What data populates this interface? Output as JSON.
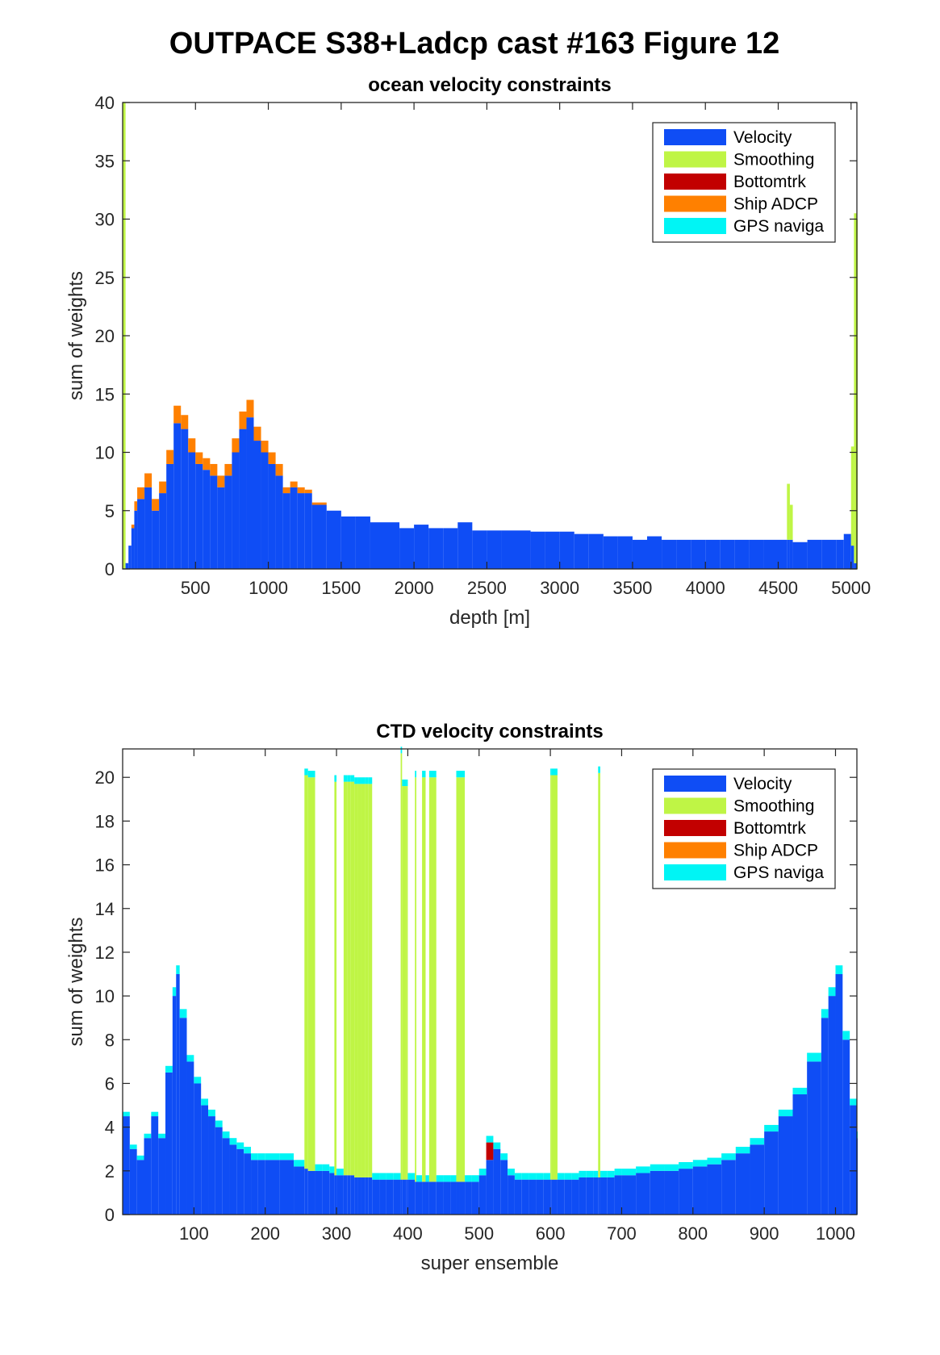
{
  "figure": {
    "suptitle": "OUTPACE S38+Ladcp cast #163  Figure 12"
  },
  "colors": {
    "Velocity": "#0f4df5",
    "Smoothing": "#bff545",
    "Bottomtrk": "#c20000",
    "Ship ADCP": "#ff8000",
    "GPS naviga": "#00f5f5"
  },
  "chart_data": [
    {
      "type": "bar",
      "stacked": true,
      "title": "ocean velocity constraints",
      "xlabel": "depth [m]",
      "ylabel": "sum of weights",
      "xlim": [
        0,
        5040
      ],
      "ylim": [
        0,
        40
      ],
      "xticks": [
        500,
        1000,
        1500,
        2000,
        2500,
        3000,
        3500,
        4000,
        4500,
        5000
      ],
      "yticks": [
        0,
        5,
        10,
        15,
        20,
        25,
        30,
        35,
        40
      ],
      "grid": false,
      "legend_position": "top-right",
      "legend": [
        "Velocity",
        "Smoothing",
        "Bottomtrk",
        "Ship ADCP",
        "GPS naviga"
      ],
      "x": [
        0,
        20,
        40,
        60,
        80,
        100,
        150,
        200,
        250,
        300,
        350,
        400,
        450,
        500,
        550,
        600,
        650,
        700,
        750,
        800,
        850,
        900,
        950,
        1000,
        1050,
        1100,
        1150,
        1200,
        1250,
        1300,
        1400,
        1500,
        1600,
        1700,
        1800,
        1900,
        2000,
        2100,
        2200,
        2300,
        2400,
        2500,
        2600,
        2700,
        2800,
        2900,
        3000,
        3100,
        3200,
        3300,
        3400,
        3500,
        3600,
        3700,
        3800,
        3900,
        4000,
        4100,
        4200,
        4300,
        4400,
        4500,
        4560,
        4580,
        4600,
        4700,
        4800,
        4900,
        4950,
        5000,
        5020,
        5040
      ],
      "series": [
        {
          "name": "Velocity",
          "values": [
            0,
            0.5,
            2,
            3.5,
            5,
            6,
            7,
            5,
            6.5,
            9,
            12.5,
            12,
            10,
            9,
            8.5,
            8,
            7,
            8,
            10,
            12,
            13,
            11,
            10,
            9,
            8,
            6.5,
            7,
            6.5,
            6.5,
            5.5,
            5,
            4.5,
            4.5,
            4,
            4,
            3.5,
            3.8,
            3.5,
            3.5,
            4,
            3.3,
            3.3,
            3.3,
            3.3,
            3.2,
            3.2,
            3.2,
            3,
            3,
            2.8,
            2.8,
            2.5,
            2.8,
            2.5,
            2.5,
            2.5,
            2.5,
            2.5,
            2.5,
            2.5,
            2.5,
            2.5,
            2.5,
            2.5,
            2.3,
            2.5,
            2.5,
            2.5,
            3,
            2,
            0.5,
            0
          ]
        },
        {
          "name": "Smoothing",
          "values": [
            40,
            0,
            0,
            0,
            0,
            0,
            0,
            0,
            0,
            0,
            0,
            0,
            0,
            0,
            0,
            0,
            0,
            0,
            0,
            0,
            0,
            0,
            0,
            0,
            0,
            0,
            0,
            0,
            0,
            0,
            0,
            0,
            0,
            0,
            0,
            0,
            0,
            0,
            0,
            0,
            0,
            0,
            0,
            0,
            0,
            0,
            0,
            0,
            0,
            0,
            0,
            0,
            0,
            0,
            0,
            0,
            0,
            0,
            0,
            0,
            0,
            0,
            4.8,
            3,
            0,
            0,
            0,
            0,
            0,
            8.5,
            30,
            30
          ]
        },
        {
          "name": "Bottomtrk",
          "values": [
            0,
            0,
            0,
            0,
            0,
            0,
            0,
            0,
            0,
            0,
            0,
            0,
            0,
            0,
            0,
            0,
            0,
            0,
            0,
            0,
            0,
            0,
            0,
            0,
            0,
            0,
            0,
            0,
            0,
            0,
            0,
            0,
            0,
            0,
            0,
            0,
            0,
            0,
            0,
            0,
            0,
            0,
            0,
            0,
            0,
            0,
            0,
            0,
            0,
            0,
            0,
            0,
            0,
            0,
            0,
            0,
            0,
            0,
            0,
            0,
            0,
            0,
            0,
            0,
            0,
            0,
            0,
            0,
            0,
            0,
            0,
            0
          ]
        },
        {
          "name": "Ship ADCP",
          "values": [
            0,
            0,
            0,
            0.3,
            0.8,
            1,
            1.2,
            1,
            1,
            1.2,
            1.5,
            1.2,
            1.2,
            1,
            1,
            1,
            1,
            1,
            1.2,
            1.5,
            1.5,
            1.2,
            1,
            1,
            1,
            0.5,
            0.5,
            0.5,
            0.3,
            0.2,
            0,
            0,
            0,
            0,
            0,
            0,
            0,
            0,
            0,
            0,
            0,
            0,
            0,
            0,
            0,
            0,
            0,
            0,
            0,
            0,
            0,
            0,
            0,
            0,
            0,
            0,
            0,
            0,
            0,
            0,
            0,
            0,
            0,
            0,
            0,
            0,
            0,
            0,
            0,
            0,
            0,
            0
          ]
        },
        {
          "name": "GPS naviga",
          "values": [
            0,
            0,
            0,
            0,
            0,
            0,
            0,
            0,
            0,
            0,
            0,
            0,
            0,
            0,
            0,
            0,
            0,
            0,
            0,
            0,
            0,
            0,
            0,
            0,
            0,
            0,
            0,
            0,
            0,
            0,
            0,
            0,
            0,
            0,
            0,
            0,
            0,
            0,
            0,
            0,
            0,
            0,
            0,
            0,
            0,
            0,
            0,
            0,
            0,
            0,
            0,
            0,
            0,
            0,
            0,
            0,
            0,
            0,
            0,
            0,
            0,
            0,
            0,
            0,
            0,
            0,
            0,
            0,
            0,
            0,
            0,
            0
          ]
        }
      ]
    },
    {
      "type": "bar",
      "stacked": true,
      "title": "CTD velocity constraints",
      "xlabel": "super ensemble",
      "ylabel": "sum of weights",
      "xlim": [
        0,
        1030
      ],
      "ylim": [
        0,
        21.3
      ],
      "xticks": [
        100,
        200,
        300,
        400,
        500,
        600,
        700,
        800,
        900,
        1000
      ],
      "yticks": [
        0,
        2,
        4,
        6,
        8,
        10,
        12,
        14,
        16,
        18,
        20
      ],
      "grid": false,
      "legend_position": "top-right",
      "legend": [
        "Velocity",
        "Smoothing",
        "Bottomtrk",
        "Ship ADCP",
        "GPS naviga"
      ],
      "x": [
        0,
        10,
        20,
        30,
        40,
        50,
        60,
        70,
        75,
        80,
        90,
        100,
        110,
        120,
        130,
        140,
        150,
        160,
        170,
        180,
        190,
        200,
        220,
        240,
        255,
        260,
        270,
        280,
        290,
        297,
        300,
        310,
        315,
        320,
        325,
        330,
        335,
        340,
        345,
        350,
        360,
        370,
        380,
        390,
        392,
        398,
        400,
        410,
        412,
        420,
        425,
        430,
        440,
        450,
        460,
        468,
        472,
        480,
        490,
        500,
        510,
        520,
        530,
        540,
        550,
        560,
        570,
        580,
        590,
        600,
        602,
        610,
        620,
        630,
        640,
        650,
        660,
        667,
        670,
        680,
        690,
        700,
        720,
        740,
        760,
        780,
        800,
        820,
        840,
        860,
        880,
        900,
        920,
        940,
        960,
        980,
        990,
        1000,
        1010,
        1020,
        1030
      ],
      "series": [
        {
          "name": "Velocity",
          "values": [
            4.5,
            3,
            2.5,
            3.5,
            4.5,
            3.5,
            6.5,
            10,
            11,
            9,
            7,
            6,
            5,
            4.5,
            4,
            3.5,
            3.2,
            3,
            2.8,
            2.5,
            2.5,
            2.5,
            2.5,
            2.2,
            2.1,
            2,
            2,
            2,
            1.9,
            1.8,
            1.8,
            1.8,
            1.8,
            1.8,
            1.7,
            1.7,
            1.7,
            1.7,
            1.7,
            1.6,
            1.6,
            1.6,
            1.6,
            1.6,
            1.6,
            1.6,
            1.6,
            1.5,
            1.5,
            1.5,
            1.5,
            1.5,
            1.5,
            1.5,
            1.5,
            1.5,
            1.5,
            1.5,
            1.5,
            1.8,
            2.5,
            3,
            2.5,
            1.8,
            1.6,
            1.6,
            1.6,
            1.6,
            1.6,
            1.6,
            1.6,
            1.6,
            1.6,
            1.6,
            1.7,
            1.7,
            1.7,
            1.7,
            1.7,
            1.7,
            1.8,
            1.8,
            1.9,
            2,
            2,
            2.1,
            2.2,
            2.3,
            2.5,
            2.8,
            3.2,
            3.8,
            4.5,
            5.5,
            7,
            9,
            10,
            11,
            8,
            5,
            3.5
          ]
        },
        {
          "name": "Smoothing",
          "values": [
            0,
            0,
            0,
            0,
            0,
            0,
            0,
            0,
            0,
            0,
            0,
            0,
            0,
            0,
            0,
            0,
            0,
            0,
            0,
            0,
            0,
            0,
            0,
            0,
            18,
            18,
            0,
            0,
            0,
            18,
            0,
            18,
            18,
            18,
            18,
            18,
            18,
            18,
            18,
            0,
            0,
            0,
            0,
            19.5,
            18,
            18,
            0,
            18.5,
            0,
            18.5,
            0,
            18.5,
            0,
            0,
            0,
            18.5,
            18.5,
            0,
            0,
            0,
            0,
            0,
            0,
            0,
            0,
            0,
            0,
            0,
            0,
            18.5,
            18.5,
            0,
            0,
            0,
            0,
            0,
            0,
            18.5,
            0,
            0,
            0,
            0,
            0,
            0,
            0,
            0,
            0,
            0,
            0,
            0,
            0,
            0,
            0,
            0,
            0,
            0,
            0,
            0,
            0,
            0,
            0
          ]
        },
        {
          "name": "Bottomtrk",
          "values": [
            0,
            0,
            0,
            0,
            0,
            0,
            0,
            0,
            0,
            0,
            0,
            0,
            0,
            0,
            0,
            0,
            0,
            0,
            0,
            0,
            0,
            0,
            0,
            0,
            0,
            0,
            0,
            0,
            0,
            0,
            0,
            0,
            0,
            0,
            0,
            0,
            0,
            0,
            0,
            0,
            0,
            0,
            0,
            0,
            0,
            0,
            0,
            0,
            0,
            0,
            0,
            0,
            0,
            0,
            0,
            0,
            0,
            0,
            0,
            0,
            0.8,
            0,
            0,
            0,
            0,
            0,
            0,
            0,
            0,
            0,
            0,
            0,
            0,
            0,
            0,
            0,
            0,
            0,
            0,
            0,
            0,
            0,
            0,
            0,
            0,
            0,
            0,
            0,
            0,
            0,
            0,
            0,
            0,
            0,
            0,
            0,
            0,
            0,
            0,
            0,
            0
          ]
        },
        {
          "name": "Ship ADCP",
          "values": [
            0,
            0,
            0,
            0,
            0,
            0,
            0,
            0,
            0,
            0,
            0,
            0,
            0,
            0,
            0,
            0,
            0,
            0,
            0,
            0,
            0,
            0,
            0,
            0,
            0,
            0,
            0,
            0,
            0,
            0,
            0,
            0,
            0,
            0,
            0,
            0,
            0,
            0,
            0,
            0,
            0,
            0,
            0,
            0,
            0,
            0,
            0,
            0,
            0,
            0,
            0,
            0,
            0,
            0,
            0,
            0,
            0,
            0,
            0,
            0,
            0,
            0,
            0,
            0,
            0,
            0,
            0,
            0,
            0,
            0,
            0,
            0,
            0,
            0,
            0,
            0,
            0,
            0,
            0,
            0,
            0,
            0,
            0,
            0,
            0,
            0,
            0,
            0,
            0,
            0,
            0,
            0,
            0,
            0,
            0,
            0,
            0,
            0,
            0,
            0,
            0
          ]
        },
        {
          "name": "GPS naviga",
          "values": [
            0.2,
            0.2,
            0.2,
            0.2,
            0.2,
            0.2,
            0.3,
            0.4,
            0.4,
            0.4,
            0.3,
            0.3,
            0.3,
            0.3,
            0.3,
            0.3,
            0.3,
            0.3,
            0.3,
            0.3,
            0.3,
            0.3,
            0.3,
            0.3,
            0.3,
            0.3,
            0.3,
            0.3,
            0.3,
            0.3,
            0.3,
            0.3,
            0.3,
            0.3,
            0.3,
            0.3,
            0.3,
            0.3,
            0.3,
            0.3,
            0.3,
            0.3,
            0.3,
            0.3,
            0.3,
            0.3,
            0.3,
            0.3,
            0.3,
            0.3,
            0.3,
            0.3,
            0.3,
            0.3,
            0.3,
            0.3,
            0.3,
            0.3,
            0.3,
            0.3,
            0.3,
            0.3,
            0.3,
            0.3,
            0.3,
            0.3,
            0.3,
            0.3,
            0.3,
            0.3,
            0.3,
            0.3,
            0.3,
            0.3,
            0.3,
            0.3,
            0.3,
            0.3,
            0.3,
            0.3,
            0.3,
            0.3,
            0.3,
            0.3,
            0.3,
            0.3,
            0.3,
            0.3,
            0.3,
            0.3,
            0.3,
            0.3,
            0.3,
            0.3,
            0.4,
            0.4,
            0.4,
            0.4,
            0.4,
            0.3,
            0.3
          ]
        }
      ]
    }
  ]
}
